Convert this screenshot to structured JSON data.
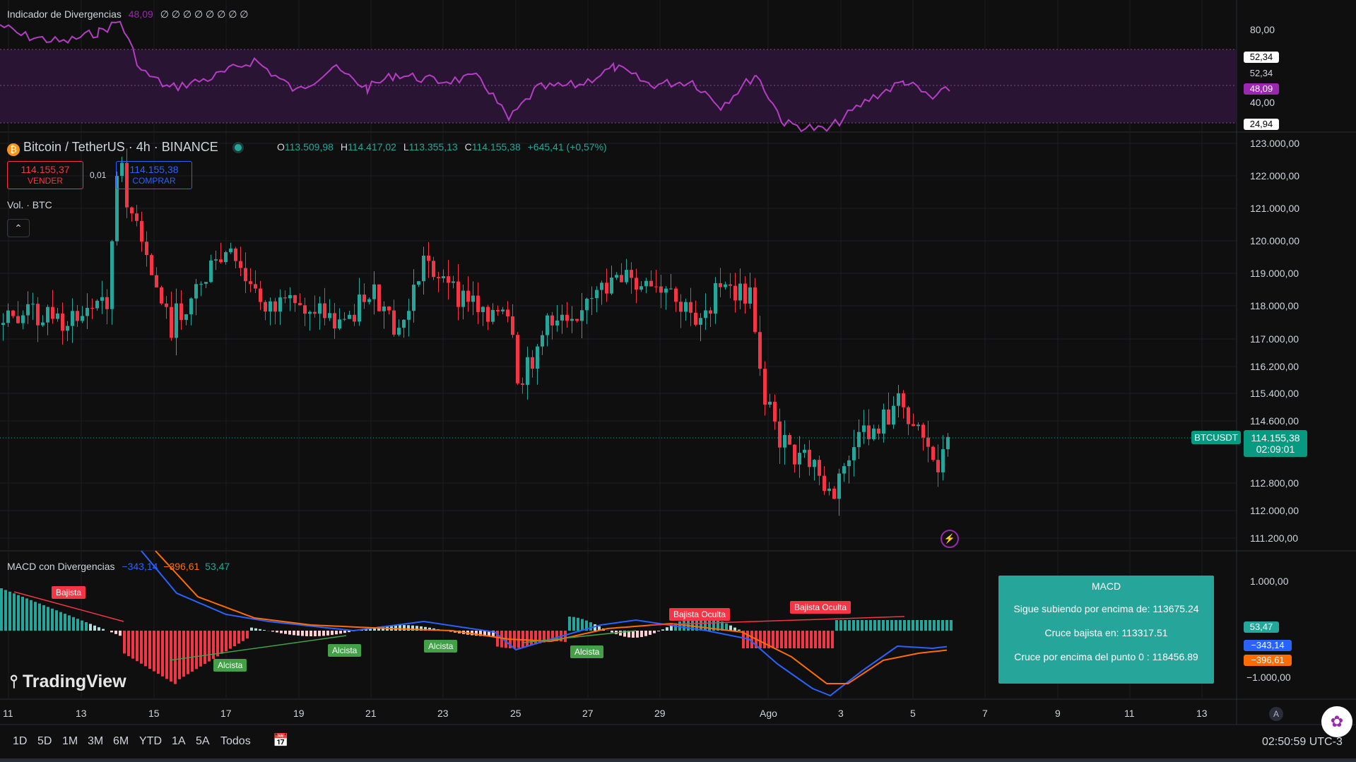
{
  "osc_panel": {
    "title": "Indicador de Divergencias",
    "value": "48,09",
    "zeros": "∅ ∅ ∅ ∅ ∅ ∅ ∅ ∅",
    "axis": [
      "80,00",
      "40,00"
    ],
    "badges": [
      {
        "text": "52,34",
        "kind": "white"
      },
      {
        "text": "52,34",
        "kind": "plain"
      },
      {
        "text": "48,09",
        "kind": "purple"
      },
      {
        "text": "24,94",
        "kind": "white"
      }
    ]
  },
  "header": {
    "symbol": "Bitcoin / TetherUS · 4h · BINANCE",
    "o_label": "O",
    "o": "113.509,98",
    "h_label": "H",
    "h": "114.417,02",
    "l_label": "L",
    "l": "113.355,13",
    "c_label": "C",
    "c": "114.155,38",
    "change": "+645,41 (+0,57%)"
  },
  "trade": {
    "sell_price": "114.155,37",
    "sell_label": "VENDER",
    "spread": "0,01",
    "buy_price": "114.155,38",
    "buy_label": "COMPRAR"
  },
  "volume_label": "Vol. · BTC",
  "price_axis": [
    "123.000,00",
    "122.000,00",
    "121.000,00",
    "120.000,00",
    "119.000,00",
    "118.000,00",
    "117.000,00",
    "116.200,00",
    "115.400,00",
    "114.600,00",
    "112.800,00",
    "112.000,00",
    "111.200,00"
  ],
  "last_price": {
    "symbol": "BTCUSDT",
    "price": "114.155,38",
    "countdown": "02:09:01"
  },
  "macd_panel": {
    "title": "MACD con Divergencias",
    "v1": "−343,14",
    "v2": "−396,61",
    "v3": "53,47",
    "axis_top": "1.000,00",
    "axis_bottom": "−1.000,00",
    "badges": [
      {
        "text": "53,47",
        "kind": "teal"
      },
      {
        "text": "−343,14",
        "kind": "blue"
      },
      {
        "text": "−396,61",
        "kind": "orange"
      }
    ],
    "tags": {
      "bajista": "Bajista",
      "alcista1": "Alcista",
      "alcista2": "Alcista",
      "alcista3": "Alcista",
      "alcista4": "Alcista",
      "oculta1": "Bajista Oculta",
      "oculta2": "Bajista Oculta"
    },
    "info": {
      "title": "MACD",
      "line1": "Sigue subiendo por encima de: 113675.24",
      "line2": "Cruce bajista en: 113317.51",
      "line3": "Cruce por encima del punto 0 : 118456.89"
    }
  },
  "logo": "TradingView",
  "time_axis": [
    "11",
    "13",
    "15",
    "17",
    "19",
    "21",
    "23",
    "25",
    "27",
    "29",
    "Ago",
    "3",
    "5",
    "7",
    "9",
    "11",
    "13"
  ],
  "auto_label": "A",
  "timeframes": [
    "1D",
    "5D",
    "1M",
    "3M",
    "6M",
    "YTD",
    "1A",
    "5A",
    "Todos"
  ],
  "clock": "02:50:59 UTC-3",
  "colors": {
    "up": "#26a69a",
    "down": "#f23645",
    "purple": "#9c27b0",
    "macd": "#2962ff",
    "signal": "#ff6d00"
  }
}
